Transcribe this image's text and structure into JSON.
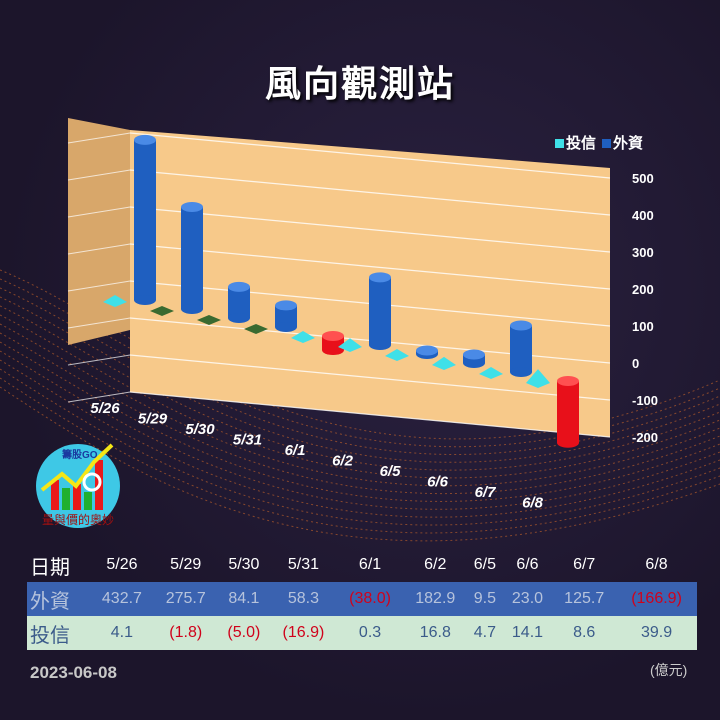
{
  "title": "風向觀測站",
  "chart_data": {
    "type": "bar",
    "title": "風向觀測站",
    "categories": [
      "5/26",
      "5/29",
      "5/30",
      "5/31",
      "6/1",
      "6/2",
      "6/5",
      "6/6",
      "6/7",
      "6/8"
    ],
    "series": [
      {
        "name": "外資",
        "values": [
          432.7,
          275.7,
          84.1,
          58.3,
          -38.0,
          182.9,
          9.5,
          23.0,
          125.7,
          -166.9
        ]
      },
      {
        "name": "投信",
        "values": [
          4.1,
          -1.8,
          -5.0,
          -16.9,
          0.3,
          16.8,
          4.7,
          14.1,
          8.6,
          39.9
        ]
      }
    ],
    "yticks": [
      "500",
      "400",
      "300",
      "200",
      "100",
      "0",
      "-100",
      "-200"
    ],
    "ylim": [
      -200,
      500
    ],
    "legend": "top-right",
    "colors": {
      "外資_pos": "#1f5fc0",
      "外資_neg": "#e8101a",
      "投信_pos": "#3fe0e8",
      "投信_neg": "#3a6a30",
      "wall": "#f7c98a"
    }
  },
  "table": {
    "header_label": "日期",
    "dates": [
      "5/26",
      "5/29",
      "5/30",
      "5/31",
      "6/1",
      "6/2",
      "6/5",
      "6/6",
      "6/7",
      "6/8"
    ],
    "foreign_label": "外資",
    "foreign": [
      "432.7",
      "275.7",
      "84.1",
      "58.3",
      "(38.0)",
      "182.9",
      "9.5",
      "23.0",
      "125.7",
      "(166.9)"
    ],
    "trust_label": "投信",
    "trust": [
      "4.1",
      "(1.8)",
      "(5.0)",
      "(16.9)",
      "0.3",
      "16.8",
      "4.7",
      "14.1",
      "8.6",
      "39.9"
    ]
  },
  "logo": {
    "top": "籌股GO",
    "bottom": "量與價的奧妙"
  },
  "footer": {
    "date": "2023-06-08",
    "unit": "(億元)"
  }
}
